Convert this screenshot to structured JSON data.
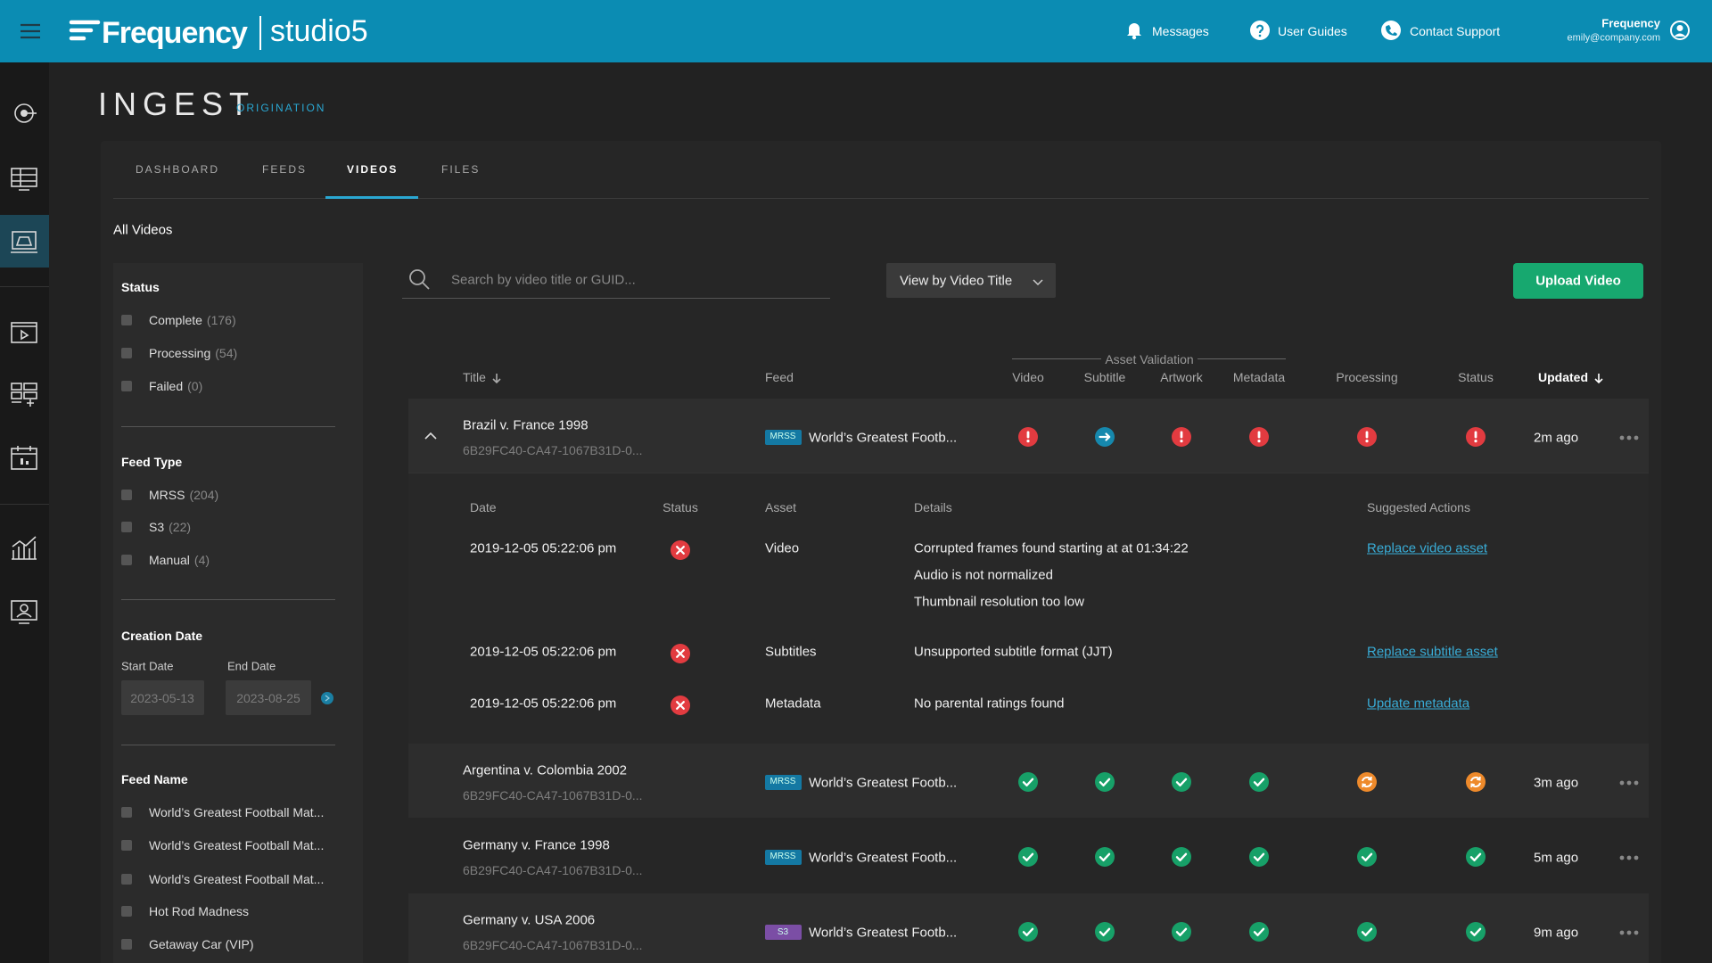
{
  "header": {
    "brand": "Frequency",
    "product": "studio5",
    "nav": [
      "Messages",
      "User Guides",
      "Contact Support"
    ],
    "user": {
      "name": "Frequency",
      "email": "emily@company.com"
    }
  },
  "page": {
    "title": "INGEST",
    "subtitle": "ORIGINATION"
  },
  "tabs": [
    "DASHBOARD",
    "FEEDS",
    "VIDEOS",
    "FILES"
  ],
  "section_title": "All Videos",
  "filters": {
    "status": {
      "title": "Status",
      "options": [
        {
          "label": "Complete",
          "count": "(176)"
        },
        {
          "label": "Processing",
          "count": "(54)"
        },
        {
          "label": "Failed",
          "count": "(0)"
        }
      ]
    },
    "feed_type": {
      "title": "Feed Type",
      "options": [
        {
          "label": "MRSS",
          "count": "(204)"
        },
        {
          "label": "S3",
          "count": "(22)"
        },
        {
          "label": "Manual",
          "count": "(4)"
        }
      ]
    },
    "creation_date": {
      "title": "Creation Date",
      "start_label": "Start Date",
      "end_label": "End Date",
      "start_value": "2023-05-13",
      "end_value": "2023-08-25"
    },
    "feed_name": {
      "title": "Feed Name",
      "options": [
        "World’s Greatest Football Mat...",
        "World’s Greatest Football Mat...",
        "World’s Greatest Football Mat...",
        "Hot Rod Madness",
        "Getaway Car (VIP)"
      ]
    }
  },
  "search_placeholder": "Search by video title or GUID...",
  "view_by": "View by Video Title",
  "upload_button": "Upload Video",
  "table": {
    "group_label": "Asset Validation",
    "columns": [
      "Title",
      "Feed",
      "Video",
      "Subtitle",
      "Artwork",
      "Metadata",
      "Processing",
      "Status",
      "Updated"
    ],
    "rows": [
      {
        "title": "Brazil v. France 1998",
        "guid": "6B29FC40-CA47-1067B31D-0...",
        "feed_type": "MRSS",
        "feed": "World’s Greatest Footb...",
        "states": [
          "error",
          "arrow",
          "error",
          "error",
          "error",
          "error"
        ],
        "updated": "2m ago"
      },
      {
        "title": "Argentina v. Colombia 2002",
        "guid": "6B29FC40-CA47-1067B31D-0...",
        "feed_type": "MRSS",
        "feed": "World’s Greatest Footb...",
        "states": [
          "ok",
          "ok",
          "ok",
          "ok",
          "sync",
          "sync"
        ],
        "updated": "3m ago"
      },
      {
        "title": "Germany v. France 1998",
        "guid": "6B29FC40-CA47-1067B31D-0...",
        "feed_type": "MRSS",
        "feed": "World’s Greatest Footb...",
        "states": [
          "ok",
          "ok",
          "ok",
          "ok",
          "ok",
          "ok"
        ],
        "updated": "5m ago"
      },
      {
        "title": "Germany v. USA 2006",
        "guid": "6B29FC40-CA47-1067B31D-0...",
        "feed_type": "S3",
        "feed": "World’s Greatest Footb...",
        "states": [
          "ok",
          "ok",
          "ok",
          "ok",
          "ok",
          "ok"
        ],
        "updated": "9m ago"
      }
    ],
    "details": {
      "columns": [
        "Date",
        "Status",
        "Asset",
        "Details",
        "Suggested Actions"
      ],
      "rows": [
        {
          "date": "2019-12-05 05:22:06 pm",
          "asset": "Video",
          "details": [
            "Corrupted frames found starting at at 01:34:22",
            "Audio is not normalized",
            "Thumbnail resolution too low"
          ],
          "action": "Replace video asset"
        },
        {
          "date": "2019-12-05 05:22:06 pm",
          "asset": "Subtitles",
          "details": [
            "Unsupported subtitle format (JJT)"
          ],
          "action": "Replace subtitle asset"
        },
        {
          "date": "2019-12-05 05:22:06 pm",
          "asset": "Metadata",
          "details": [
            "No parental ratings found"
          ],
          "action": "Update metadata"
        }
      ]
    }
  }
}
